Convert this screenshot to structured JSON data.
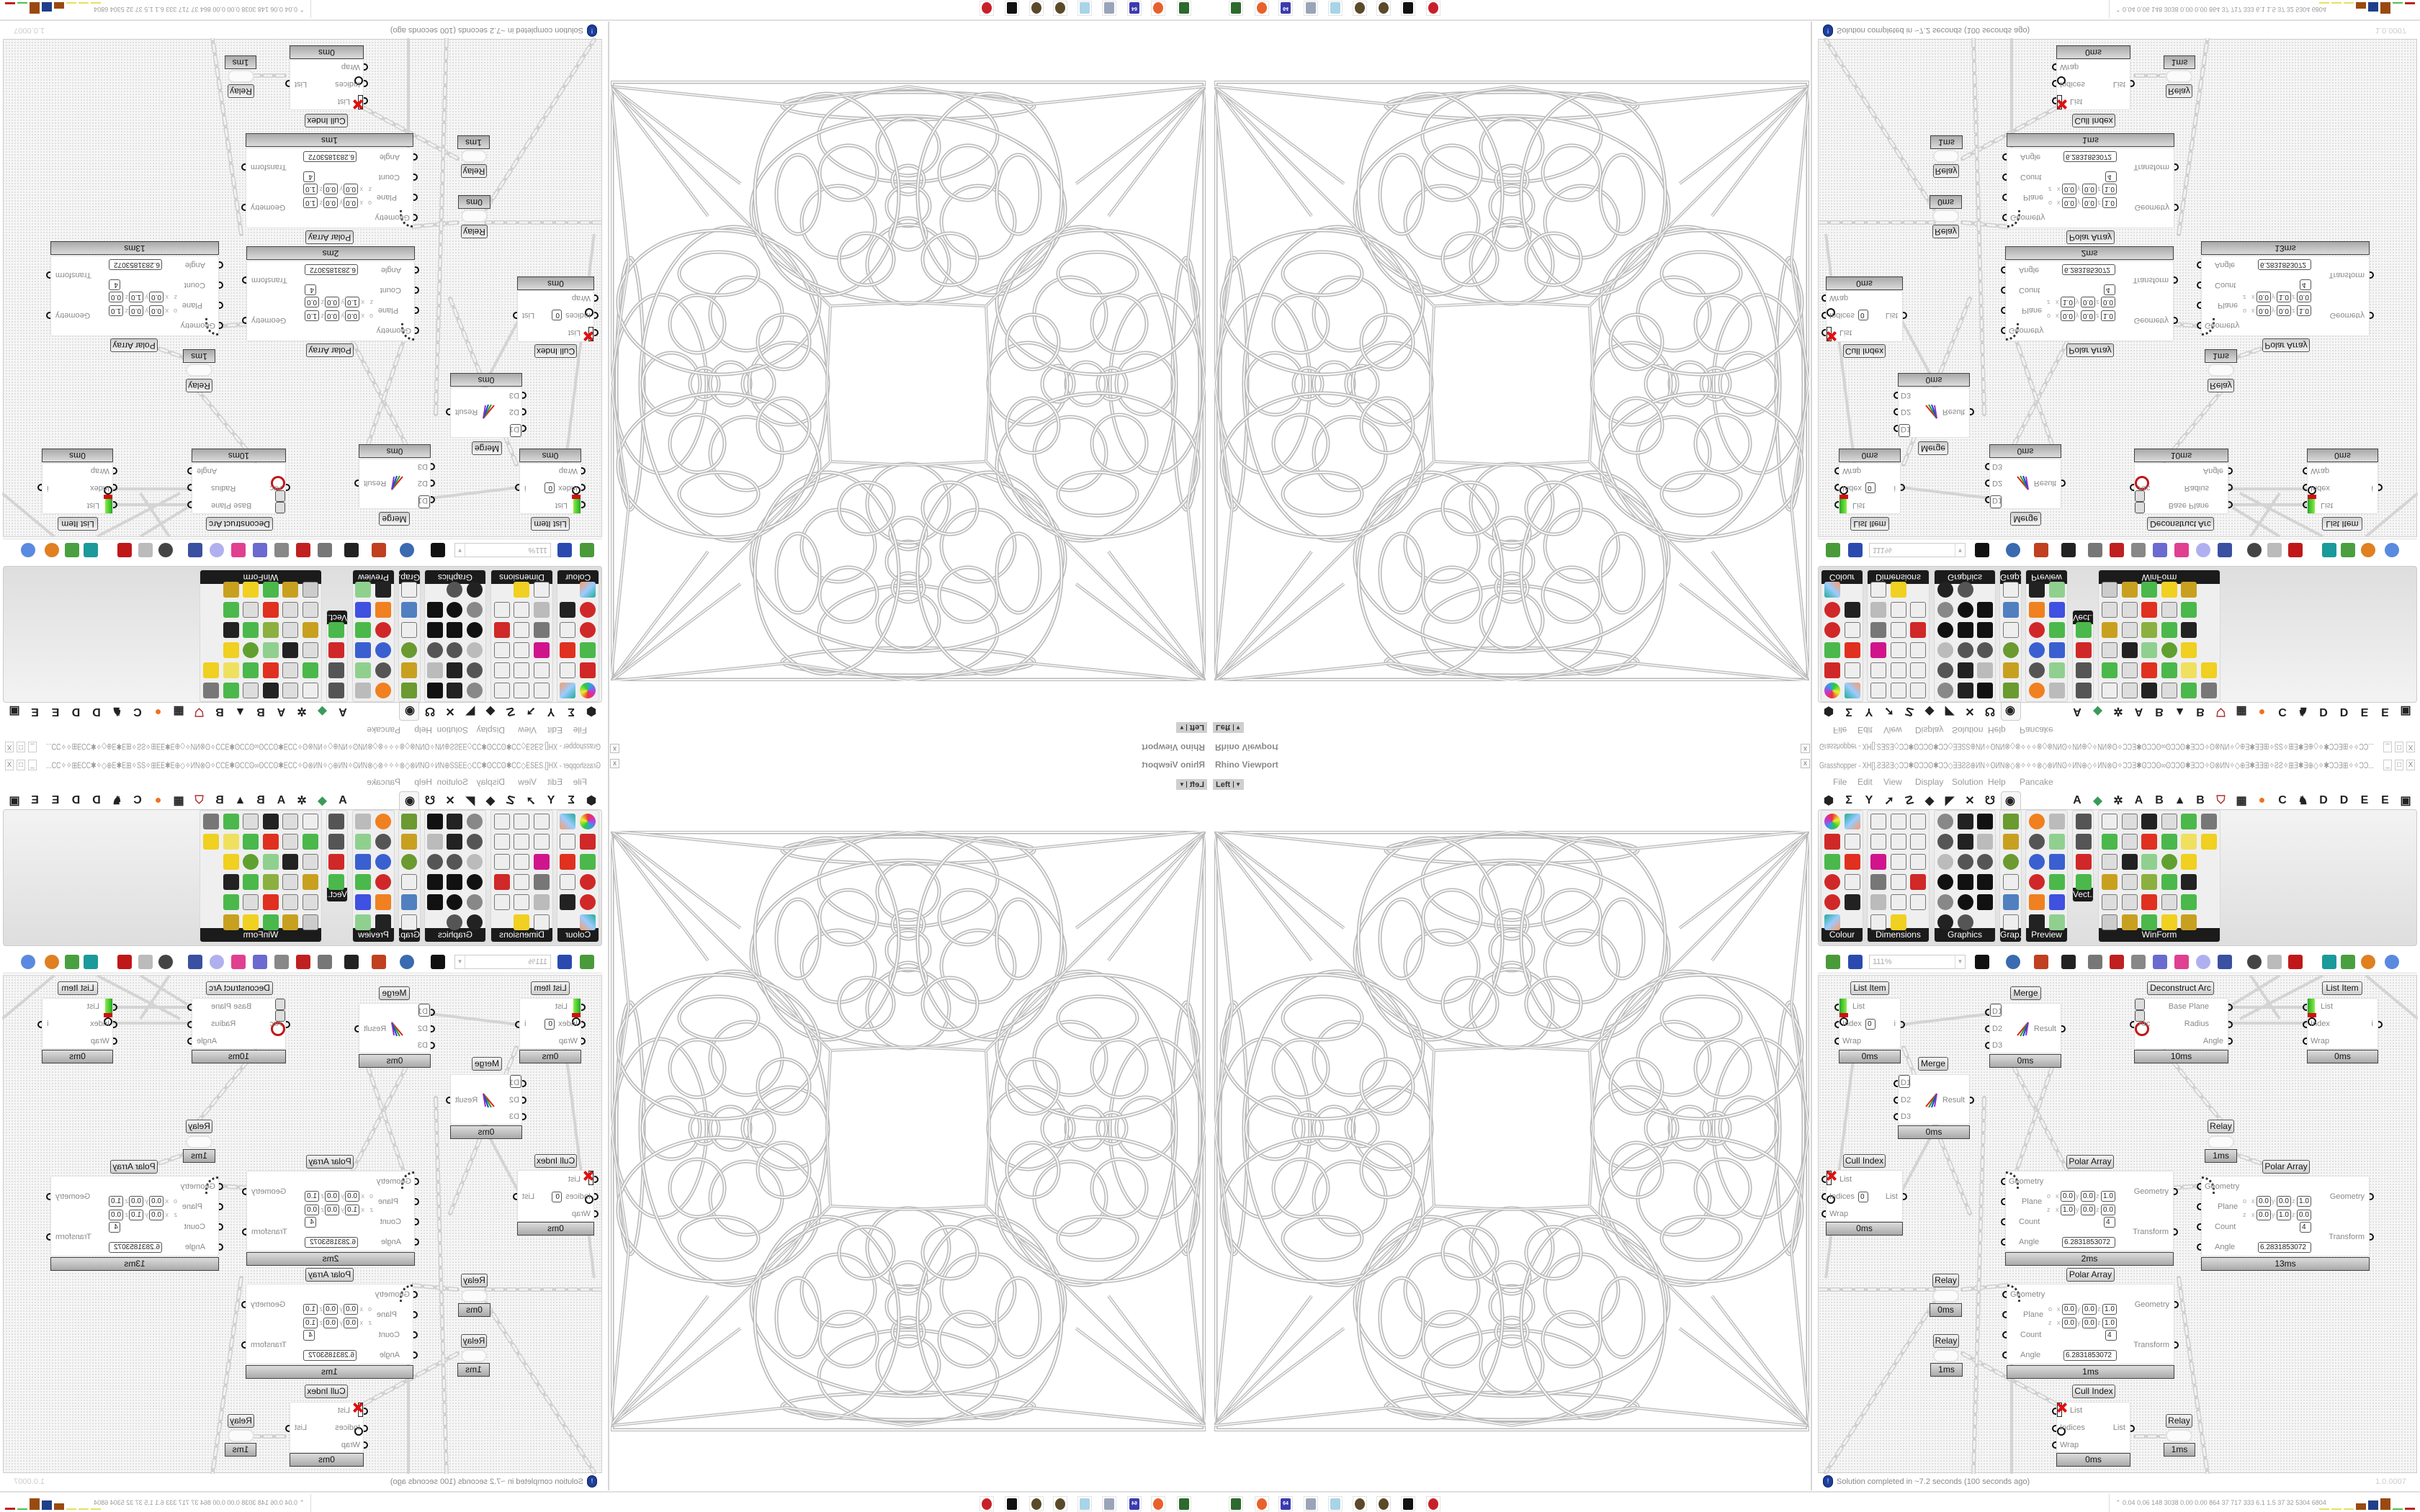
{
  "viewport": {
    "title": "Rhino Viewport",
    "view": "Left",
    "close": "x"
  },
  "gh": {
    "title": "Grasshopper - XH[].ƧƎƧƎ◇ƆƆ✱ʘƆƆʘ✱ƆƆ◇ƎƎƧƧ⊕ИN✧ʘИN⊗◇⊗✧✧✧⊗◇⊗ИNʘ✧ИN⊕◇✧ИN⊗ʘ✧ƆƆƎ✱ʘƆƆʘ∞ʘƆƆʘ✱ƎƆƆ✧ʘ⊗ИN✧◇⊕Ǝ✱ƎƎ⊞✧ƧƧ✧⊞Ǝ✱Ǝ⊕◇✧✱ƆƆƎ⊞✧✧ƆƆ...",
    "window_buttons": [
      "_",
      "□",
      "X"
    ],
    "menu": [
      "File",
      "Edit",
      "View",
      "Display",
      "Solution",
      "Help",
      "Pancake"
    ],
    "tabs": [
      {
        "icon": "params-hexagon-icon",
        "glyph": "⬢"
      },
      {
        "icon": "maths-sigma-icon",
        "glyph": "Σ"
      },
      {
        "icon": "sets-icon",
        "glyph": "Y"
      },
      {
        "icon": "vector-arrow-icon",
        "glyph": "➚"
      },
      {
        "icon": "curve-icon",
        "glyph": "☡"
      },
      {
        "icon": "surface-icon",
        "glyph": "◆"
      },
      {
        "icon": "mesh-icon",
        "glyph": "◤"
      },
      {
        "icon": "intersect-icon",
        "glyph": "✕"
      },
      {
        "icon": "transform-icon",
        "glyph": "☋"
      },
      {
        "icon": "display-eye-icon",
        "glyph": "◉",
        "selected": true
      },
      {
        "icon": "letter-a-icon",
        "glyph": "A"
      },
      {
        "icon": "leaf-icon",
        "glyph": "◆"
      },
      {
        "icon": "puzzle-icon",
        "glyph": "✲"
      },
      {
        "icon": "letter-a-icon",
        "glyph": "A"
      },
      {
        "icon": "letter-b-icon",
        "glyph": "B"
      },
      {
        "icon": "mountain-icon",
        "glyph": "▲"
      },
      {
        "icon": "letter-b-icon",
        "glyph": "B"
      },
      {
        "icon": "shield-icon",
        "glyph": "⛉"
      },
      {
        "icon": "grid-icon",
        "glyph": "▦"
      },
      {
        "icon": "orange-circle-icon",
        "glyph": "●"
      },
      {
        "icon": "letter-c-icon",
        "glyph": "C"
      },
      {
        "icon": "rooster-icon",
        "glyph": "♞"
      },
      {
        "icon": "letter-d-icon",
        "glyph": "D"
      },
      {
        "icon": "letter-d-icon",
        "glyph": "D"
      },
      {
        "icon": "letter-e-icon",
        "glyph": "E"
      },
      {
        "icon": "letter-e-icon",
        "glyph": "E"
      },
      {
        "icon": "dotted-box-icon",
        "glyph": "▣"
      },
      {
        "icon": "letter-e-icon",
        "glyph": "E"
      }
    ],
    "ribbon": [
      {
        "label": "Colour",
        "cols": 2,
        "icons": [
          "colour-wheel",
          "gradient",
          "red-cube",
          "spectrum-triangle",
          "green-cube",
          "hsl",
          "red-sphere",
          "hsv",
          "red-sphere",
          "prism",
          "gradient-square"
        ]
      },
      {
        "label": "Dimensions",
        "cols": 3,
        "icons": [
          "tag-delete",
          "dimension-vertical",
          "dimension-angle",
          "tag",
          "line-pen",
          "dimension-box",
          "magenta-swatch",
          "dimension-multi",
          "dimension-arrow",
          "grid-pattern",
          "angle-dim",
          "angle-red",
          "arc-dim",
          "curve-dim",
          "leader",
          "line-dim",
          "yellow-triangle"
        ]
      },
      {
        "label": "Graphics",
        "cols": 3,
        "icons": [
          "circle-gray",
          "text-outline",
          "eye-black",
          "dotted-circle",
          "text-t",
          "rounded-square",
          "blur-dot",
          "list-circle",
          "asterisk-circle",
          "ring",
          "link",
          "save-mountain",
          "sphere-gray",
          "dotted-ring",
          "save-asterisk",
          "sphere-dark",
          "mountain-circle"
        ]
      },
      {
        "label": "Grap...",
        "cols": 1,
        "icons": [
          "bar-chart",
          "bar-legend",
          "pie-chart",
          "line-graph",
          "image-stack",
          "line-graph"
        ]
      },
      {
        "label": "Preview",
        "cols": 2,
        "icons": [
          "orange-egg",
          "camera",
          "sphere-scene",
          "tree-image",
          "blue-dots",
          "blue-heart",
          "red-dots",
          "green-heart",
          "orange-square",
          "hearts",
          "sl-text",
          "tree-frame"
        ]
      },
      {
        "label": "Vect...",
        "cols": 1,
        "icons": [
          "numbers-sort",
          "path",
          "red-arrows",
          "green-arrows"
        ]
      },
      {
        "label": "WinForm",
        "cols": 6,
        "icons": [
          "letter-a",
          "list-form",
          "text-lines",
          "label",
          "chart-green",
          "grid-button",
          "hatched-green",
          "progress",
          "slider-h",
          "green-grid",
          "face",
          "panel-yellow",
          "checkbox",
          "textbox",
          "picture",
          "pie",
          "person-bubble",
          "",
          "list-bar",
          "numeric",
          "cube-package",
          "media",
          "text-a-plus",
          "",
          "ok-button",
          "scroll",
          "slider-v",
          "list-check",
          "green-window",
          "",
          "calendar",
          "scrollbar-v",
          "battery",
          "bar-yellow",
          "arrow-right-bar"
        ]
      }
    ],
    "toolbar": {
      "zoom": "111%",
      "icons": [
        "new-file-icon",
        "save-icon",
        "zoom-extents-icon",
        "preview-eye-icon",
        "sketch-pen-icon",
        "bug-icon",
        "email-at-icon",
        "gha-icon",
        "canvas-image-icon",
        "search-icon",
        "package-icon",
        "bulb-icon",
        "wire-cross-icon",
        "sphere-black-icon",
        "cylinder-icon",
        "red-box-icon",
        "teal-shape-icon",
        "green-shape-icon",
        "orange-sphere-icon",
        "blue-sphere-icon"
      ]
    },
    "canvas": {
      "plane_row_labels": [
        "o",
        "z"
      ],
      "axis_labels": [
        "x",
        "y",
        "z"
      ],
      "nodes": [
        {
          "title": "List Item",
          "inputs": [
            "List",
            "Index",
            "Wrap"
          ],
          "outputs": [
            "i"
          ],
          "index_value": "0",
          "time": "0ms"
        },
        {
          "title": "Merge",
          "inputs": [
            "D1",
            "D2",
            "D3"
          ],
          "outputs": [
            "Result"
          ],
          "time": "0ms"
        },
        {
          "title": "Deconstruct Arc",
          "inputs": [
            "Arc"
          ],
          "outputs": [
            "Base Plane",
            "Radius",
            "Angle"
          ],
          "time": "10ms"
        },
        {
          "title": "List Item",
          "inputs": [
            "List",
            "Index",
            "Wrap"
          ],
          "outputs": [
            "i"
          ],
          "time": "0ms"
        },
        {
          "title": "Merge",
          "inputs": [
            "D1",
            "D2",
            "D3"
          ],
          "outputs": [
            "Result"
          ],
          "time": "0ms"
        },
        {
          "title": "Relay",
          "time": "1ms"
        },
        {
          "title": "Cull Index",
          "inputs": [
            "List",
            "Indices",
            "Wrap"
          ],
          "outputs": [
            "List"
          ],
          "index_value": "0",
          "time": "0ms"
        },
        {
          "title": "Polar Array",
          "inputs": [
            "Geometry",
            "Plane",
            "Count",
            "Angle"
          ],
          "outputs": [
            "Geometry",
            "Transform"
          ],
          "plane": [
            [
              "0.0",
              "0.0",
              "1.0"
            ],
            [
              "1.0",
              "0.0",
              "0.0"
            ]
          ],
          "count": "4",
          "angle": "6.2831853072",
          "time": "2ms"
        },
        {
          "title": "Polar Array",
          "inputs": [
            "Geometry",
            "Plane",
            "Count",
            "Angle"
          ],
          "outputs": [
            "Geometry",
            "Transform"
          ],
          "plane": [
            [
              "0.0",
              "0.0",
              "1.0"
            ],
            [
              "0.0",
              "1.0",
              "0.0"
            ]
          ],
          "count": "4",
          "angle": "6.2831853072",
          "time": "13ms"
        },
        {
          "title": "Relay",
          "time": "0ms"
        },
        {
          "title": "Polar Array",
          "inputs": [
            "Geometry",
            "Plane",
            "Count",
            "Angle"
          ],
          "outputs": [
            "Geometry",
            "Transform"
          ],
          "plane": [
            [
              "0.0",
              "0.0",
              "1.0"
            ],
            [
              "0.0",
              "0.0",
              "1.0"
            ]
          ],
          "count": "4",
          "angle": "6.2831853072",
          "time": "1ms"
        },
        {
          "title": "Relay",
          "time": "1ms"
        },
        {
          "title": "Cull Index",
          "inputs": [
            "List",
            "Indices",
            "Wrap"
          ],
          "outputs": [
            "List"
          ],
          "time": "0ms"
        },
        {
          "title": "Relay",
          "time": "1ms"
        }
      ]
    },
    "status": {
      "icon": "info-icon",
      "text": "Solution completed in ~7.2 seconds (100 seconds ago)",
      "version": "1.0.0007"
    }
  },
  "taskbar": {
    "icons": [
      {
        "icon": "green-device-icon",
        "color": "#2d6a2d"
      },
      {
        "icon": "firefox-icon",
        "color": "#e8612c"
      },
      {
        "icon": "floppy-64-icon",
        "color": "#3b3bb0",
        "glyph": "64"
      },
      {
        "icon": "scroll-icon",
        "color": "#9aa4b8"
      },
      {
        "icon": "notepad-icon",
        "color": "#a8d4e8"
      },
      {
        "icon": "gear-icon",
        "color": "#5a4a2a"
      },
      {
        "icon": "gear-icon",
        "color": "#5a4a2a"
      },
      {
        "icon": "wolf-icon",
        "color": "#111111"
      },
      {
        "icon": "red-badge-icon",
        "color": "#c8202a"
      }
    ],
    "perf": "0.04  0.06  148  3038  0.00  0.00  864   37   717   333   6.1   1.5   37   32   5304 6804",
    "perf_bars": [
      {
        "color": "#e8e060",
        "level": 0.1
      },
      {
        "color": "#e8e060",
        "level": 0.1
      },
      {
        "color": "#e8e060",
        "level": 0.1
      },
      {
        "color": "#9a4a10",
        "level": 0.55
      },
      {
        "color": "#1f3f8a",
        "level": 0.8
      },
      {
        "color": "#9a4a10",
        "level": 1.0
      },
      {
        "color": "#50c050",
        "level": 0.1
      },
      {
        "color": "#c02020",
        "level": 0.2
      }
    ]
  },
  "colors": {
    "canvas": "#f6f6f6",
    "panel_label": "#1b1b1b",
    "node_footer": "#b5b5b5"
  }
}
